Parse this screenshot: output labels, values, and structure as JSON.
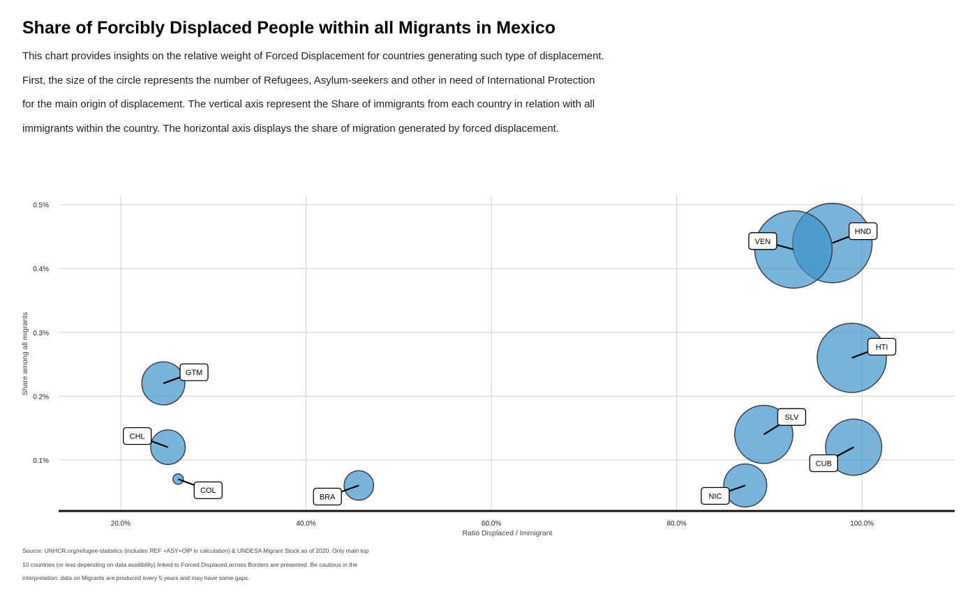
{
  "title": "Share of Forcibly Displaced People within all Migrants in Mexico",
  "subtitle": "This chart provides insights on the relative weight of Forced Displacement for countries generating such type of displacement. First, the size of the circle represents the number of Refugees, Asylum-seekers and other in need of International Protection for the main origin of displacement. The vertical axis represent the Share of immigrants from each country in relation with all immigrants within the country. The horizontal axis displays the share of migration generated by forced displacement.",
  "caption": "Source: UNHCR.org/refugee-statistics (includes REF +ASY+OIP in calculation) & UNDESA Migrant Stock as of 2020. Only main top 10 countries (or less depending on data availibility) linked to Forced Displaced across Borders are presented. Be cautious in the interpretation: data on Migrants are produced every 5 years and may have some gaps.",
  "chart_data": {
    "type": "scatter",
    "xlabel": "Ratio Displaced / Immigrant",
    "ylabel": "Share among all migrants",
    "xlim": [
      13.3,
      110
    ],
    "ylim": [
      0.02,
      0.515
    ],
    "x_ticks": [
      20,
      40,
      60,
      80,
      100
    ],
    "x_tick_labels": [
      "20.0%",
      "40.0%",
      "60.0%",
      "80.0%",
      "100.0%"
    ],
    "y_ticks": [
      0.1,
      0.2,
      0.3,
      0.4,
      0.5
    ],
    "y_tick_labels": [
      "0.1%",
      "0.2%",
      "0.3%",
      "0.4%",
      "0.5%"
    ],
    "grid": true,
    "size_meaning": "Refugees, Asylum-seekers and other in need of International Protection (relative)",
    "marker_color": "#3a8fc8",
    "points": [
      {
        "label": "HND",
        "x": 96.8,
        "y": 0.44,
        "size": 58
      },
      {
        "label": "VEN",
        "x": 92.6,
        "y": 0.43,
        "size": 55
      },
      {
        "label": "HTI",
        "x": 98.9,
        "y": 0.26,
        "size": 44
      },
      {
        "label": "SLV",
        "x": 89.4,
        "y": 0.14,
        "size": 31
      },
      {
        "label": "CUB",
        "x": 99.1,
        "y": 0.12,
        "size": 29
      },
      {
        "label": "NIC",
        "x": 87.4,
        "y": 0.06,
        "size": 17
      },
      {
        "label": "GTM",
        "x": 24.6,
        "y": 0.22,
        "size": 17
      },
      {
        "label": "CHL",
        "x": 25.1,
        "y": 0.12,
        "size": 11
      },
      {
        "label": "BRA",
        "x": 45.7,
        "y": 0.06,
        "size": 8
      },
      {
        "label": "COL",
        "x": 26.2,
        "y": 0.07,
        "size": 1
      }
    ]
  }
}
